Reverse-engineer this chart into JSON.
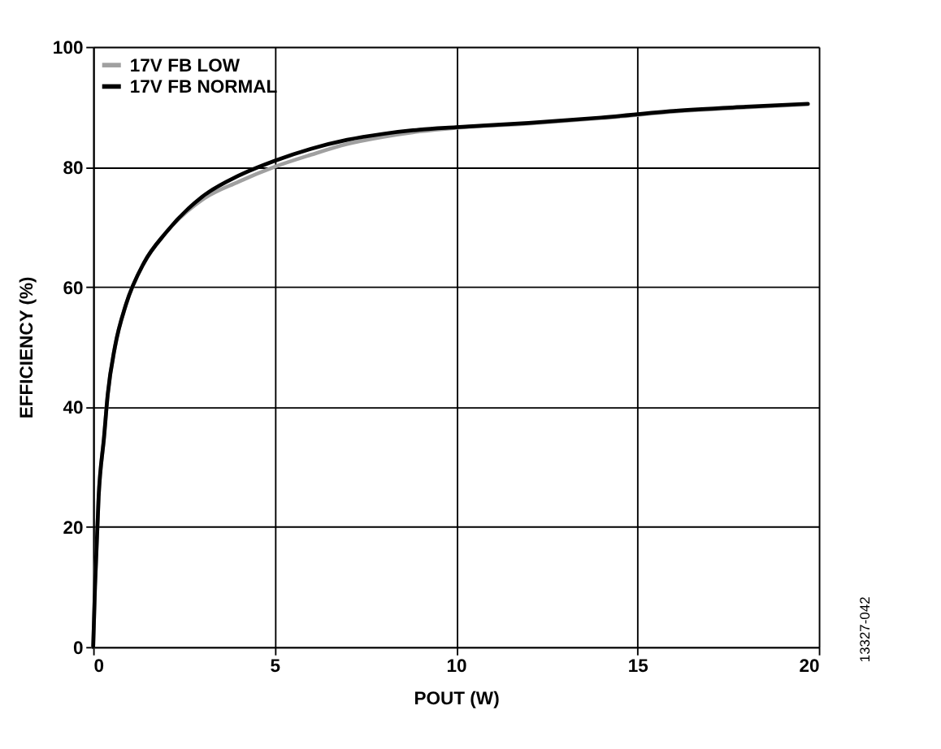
{
  "chart_data": {
    "type": "line",
    "xlabel": "POUT (W)",
    "ylabel": "EFFICIENCY (%)",
    "annotations": [
      "13327-042"
    ],
    "xlim": [
      0,
      20
    ],
    "xticks": [
      0,
      5,
      10,
      15,
      20
    ],
    "ylim": [
      0,
      100
    ],
    "yticks": [
      0,
      20,
      40,
      60,
      80,
      100
    ],
    "grid": true,
    "legend": "top left",
    "line_style": "solid",
    "marker": "none",
    "series": [
      {
        "name": "17V FB LOW",
        "color": "#a0a0a0",
        "x": [
          0,
          0.05,
          0.15,
          0.3,
          0.4,
          0.6,
          0.9,
          1.4,
          2,
          3,
          4,
          5,
          6,
          7,
          8,
          9,
          10,
          12,
          14,
          16,
          18,
          19.7
        ],
        "values": [
          0,
          10,
          25,
          35,
          42,
          50,
          57,
          64,
          69,
          74.5,
          77.5,
          80,
          82,
          83.8,
          85,
          85.9,
          86.5,
          87.2,
          88.1,
          89.2,
          89.9,
          90.4
        ]
      },
      {
        "name": "17V FB NORMAL",
        "color": "#000000",
        "x": [
          0,
          0.05,
          0.15,
          0.3,
          0.4,
          0.6,
          0.9,
          1.4,
          2,
          3,
          4,
          5,
          6,
          7,
          8,
          9,
          10,
          12,
          14,
          16,
          18,
          19.7
        ],
        "values": [
          0,
          10,
          25,
          35,
          42,
          50,
          57,
          64,
          69,
          75,
          78.5,
          81,
          83,
          84.5,
          85.5,
          86.2,
          86.6,
          87.3,
          88.2,
          89.3,
          90,
          90.5
        ]
      }
    ]
  }
}
